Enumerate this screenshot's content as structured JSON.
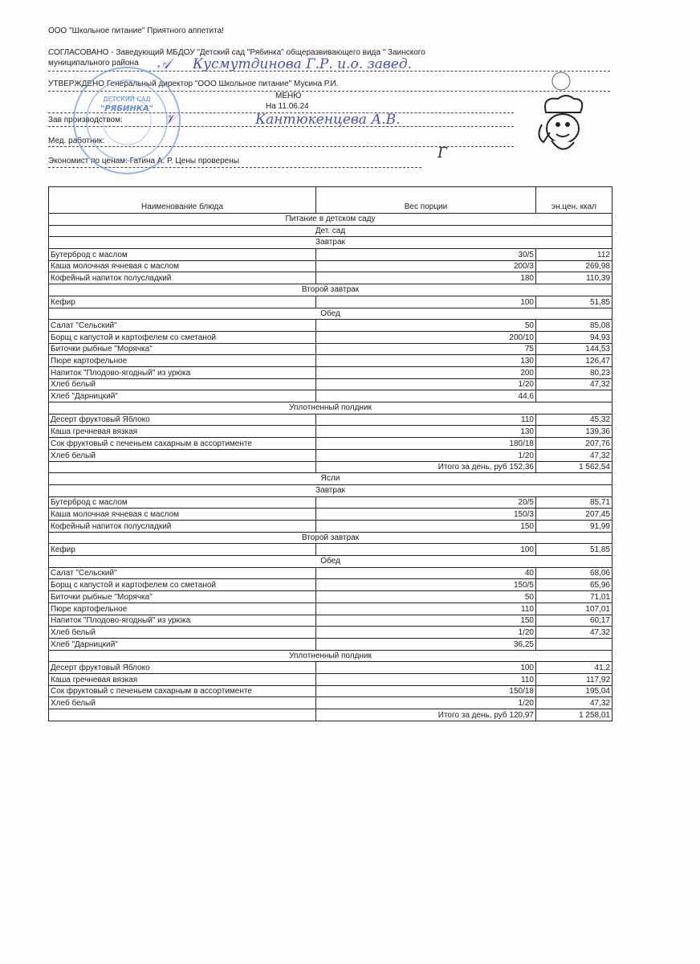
{
  "header": {
    "company": "ООО \"Школьное питание\" Приятного аппетита!",
    "agreed_line1": "СОГЛАСОВАНО  -  Заведующий  МБДОУ  \"Детский  сад  \"Рябинка\"  общеразвивающего  вида  \"  Заинского",
    "agreed_line2": "муниципального района",
    "approved": "УТВЕРЖДЕНО  Генеральный директор \"ООО Школьное питание\" Мусина Р.И.",
    "menu_title": "МЕНЮ",
    "menu_date": "На 11.06.24",
    "production_head": "Зав производством:",
    "medic": "Мед. работник:",
    "economist": "Экономист по ценам: Гатина А. Р.   Цены проверены"
  },
  "handwriting": {
    "agreed_signature": "Кусмутдинова Г.Р. и.о. завед.",
    "production_signature": "Кантюкенцева А.В."
  },
  "stamp": {
    "text_top": "ДЕТСКИЙ САД",
    "text_main": "\"РЯБИНКА\"",
    "color": "#3a6fd0"
  },
  "table": {
    "columns": [
      "Наименование блюда",
      "Вес порции",
      "эн.цен. ккал"
    ],
    "rows": [
      {
        "type": "section",
        "label": "Питание в детском саду"
      },
      {
        "type": "section",
        "label": "Дет. сад"
      },
      {
        "type": "section",
        "label": "Завтрак"
      },
      {
        "type": "item",
        "name": "Бутерброд с маслом",
        "weight": "30/5",
        "kcal": "112"
      },
      {
        "type": "item",
        "name": "Каша молочная ячневая с маслом",
        "weight": "200/3",
        "kcal": "269,98"
      },
      {
        "type": "item",
        "name": "Кофейный напиток полусладкий",
        "weight": "180",
        "kcal": "110,39"
      },
      {
        "type": "section",
        "label": "Второй завтрак"
      },
      {
        "type": "item",
        "name": "Кефир",
        "weight": "100",
        "kcal": "51,85"
      },
      {
        "type": "section",
        "label": "Обед"
      },
      {
        "type": "item",
        "name": "Салат \"Сельский\"",
        "weight": "50",
        "kcal": "85,08"
      },
      {
        "type": "item",
        "name": "Борщ с капустой и картофелем со сметаной",
        "weight": "200/10",
        "kcal": "94,93"
      },
      {
        "type": "item",
        "name": "Биточки рыбные \"Морячка\"",
        "weight": "75",
        "kcal": "144,53"
      },
      {
        "type": "item",
        "name": "Пюре картофельное",
        "weight": "130",
        "kcal": "126,47"
      },
      {
        "type": "item",
        "name": "Напиток \"Плодово-ягодный\" из урюка",
        "weight": "200",
        "kcal": "80,23"
      },
      {
        "type": "item",
        "name": "Хлеб белый",
        "weight": "1/20",
        "kcal": "47,32"
      },
      {
        "type": "item",
        "name": "Хлеб \"Дарницкий\"",
        "weight": "44,6",
        "kcal": ""
      },
      {
        "type": "section",
        "label": "Уплотненный полдник"
      },
      {
        "type": "item",
        "name": "Десерт фруктовый Яблоко",
        "weight": "110",
        "kcal": "45,32"
      },
      {
        "type": "item",
        "name": "Каша гречневая вязкая",
        "weight": "130",
        "kcal": "139,36"
      },
      {
        "type": "item",
        "name": "Сок фруктовый  с печеньем сахарным в ассортименте",
        "weight": "180/18",
        "kcal": "207,76"
      },
      {
        "type": "item",
        "name": "Хлеб белый",
        "weight": "1/20",
        "kcal": "47,32"
      },
      {
        "type": "total",
        "label": "Итого за день, руб 152,36",
        "kcal": "1 562,54"
      },
      {
        "type": "section",
        "label": "Ясли"
      },
      {
        "type": "section",
        "label": "Завтрак"
      },
      {
        "type": "item",
        "name": "Бутерброд с маслом",
        "weight": "20/5",
        "kcal": "85,71"
      },
      {
        "type": "item",
        "name": "Каша молочная ячневая с маслом",
        "weight": "150/3",
        "kcal": "207,45"
      },
      {
        "type": "item",
        "name": "Кофейный напиток полусладкий",
        "weight": "150",
        "kcal": "91,99"
      },
      {
        "type": "section",
        "label": "Второй завтрак"
      },
      {
        "type": "item",
        "name": "Кефир",
        "weight": "100",
        "kcal": "51,85"
      },
      {
        "type": "section",
        "label": "Обед"
      },
      {
        "type": "item",
        "name": "Салат \"Сельский\"",
        "weight": "40",
        "kcal": "68,06"
      },
      {
        "type": "item",
        "name": "Борщ с капустой и картофелем со сметаной",
        "weight": "150/5",
        "kcal": "65,96"
      },
      {
        "type": "item",
        "name": "Биточки рыбные \"Морячка\"",
        "weight": "50",
        "kcal": "71,01"
      },
      {
        "type": "item",
        "name": "Пюре картофельное",
        "weight": "110",
        "kcal": "107,01"
      },
      {
        "type": "item",
        "name": "Напиток \"Плодово-ягодный\" из урюка",
        "weight": "150",
        "kcal": "60,17"
      },
      {
        "type": "item",
        "name": "Хлеб белый",
        "weight": "1/20",
        "kcal": "47,32"
      },
      {
        "type": "item",
        "name": "Хлеб \"Дарницкий\"",
        "weight": "36,25",
        "kcal": ""
      },
      {
        "type": "section",
        "label": "Уплотненный полдник"
      },
      {
        "type": "item",
        "name": "Десерт фруктовый Яблоко",
        "weight": "100",
        "kcal": "41,2"
      },
      {
        "type": "item",
        "name": "Каша гречневая вязкая",
        "weight": "110",
        "kcal": "117,92"
      },
      {
        "type": "item",
        "name": "Сок фруктовый  с печеньем сахарным в ассортименте",
        "weight": "150/18",
        "kcal": "195,04"
      },
      {
        "type": "item",
        "name": "Хлеб белый",
        "weight": "1/20",
        "kcal": "47,32"
      },
      {
        "type": "total",
        "label": "Итого за день, руб 120,97",
        "kcal": "1 258,01"
      }
    ]
  }
}
